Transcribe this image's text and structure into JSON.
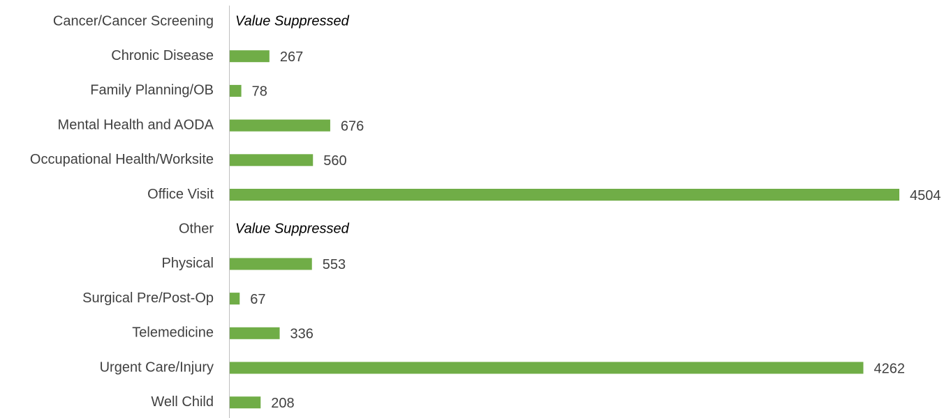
{
  "chart_data": {
    "type": "barh",
    "categories": [
      "Cancer/Cancer Screening",
      "Chronic Disease",
      "Family Planning/OB",
      "Mental Health and AODA",
      "Occupational Health/Worksite",
      "Office Visit",
      "Other",
      "Physical",
      "Surgical Pre/Post-Op",
      "Telemedicine",
      "Urgent Care/Injury",
      "Well Child"
    ],
    "values": [
      null,
      267,
      78,
      676,
      560,
      4504,
      null,
      553,
      67,
      336,
      4262,
      208
    ],
    "value_labels": [
      "Value Suppressed",
      "267",
      "78",
      "676",
      "560",
      "4504",
      "Value Suppressed",
      "553",
      "67",
      "336",
      "4262",
      "208"
    ],
    "color": "#70ad47"
  }
}
